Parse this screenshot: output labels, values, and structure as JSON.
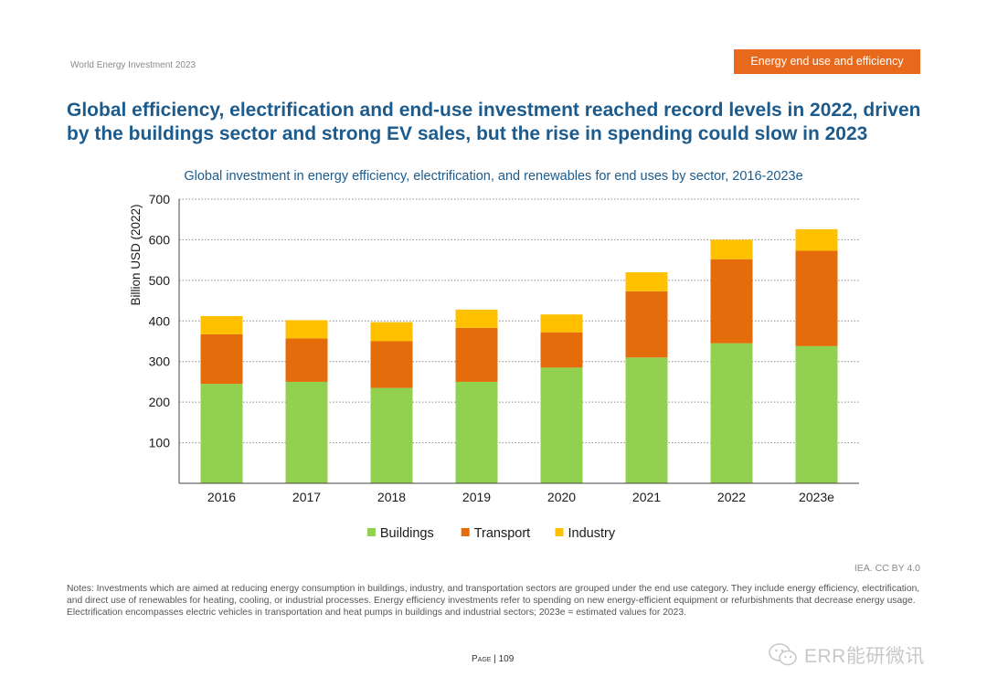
{
  "header": {
    "doc_name": "World Energy Investment 2023",
    "section_tag": "Energy end use and efficiency"
  },
  "headline": "Global efficiency, electrification and end-use investment reached record levels in 2022, driven by the buildings sector and strong EV sales, but the rise in spending could slow in 2023",
  "chart_data": {
    "type": "bar",
    "stacked": true,
    "title": "Global investment in energy efficiency, electrification, and renewables for end uses by sector, 2016-2023e",
    "xlabel": "",
    "ylabel": "Billion USD (2022)",
    "ylim": [
      0,
      700
    ],
    "yticks": [
      100,
      200,
      300,
      400,
      500,
      600,
      700
    ],
    "grid": true,
    "legend_position": "bottom",
    "categories": [
      "2016",
      "2017",
      "2018",
      "2019",
      "2020",
      "2021",
      "2022",
      "2023e"
    ],
    "series": [
      {
        "name": "Buildings",
        "color": "#92d050",
        "values": [
          245,
          250,
          235,
          250,
          285,
          310,
          345,
          338
        ]
      },
      {
        "name": "Transport",
        "color": "#e46c0a",
        "values": [
          122,
          107,
          115,
          133,
          87,
          163,
          207,
          235
        ]
      },
      {
        "name": "Industry",
        "color": "#ffc000",
        "values": [
          45,
          45,
          47,
          45,
          44,
          47,
          48,
          53
        ]
      }
    ]
  },
  "credit": "IEA. CC BY 4.0",
  "notes": "Notes: Investments which are aimed at reducing energy consumption in buildings, industry, and transportation sectors are grouped under the end use category. They include energy efficiency, electrification, and direct use of renewables for heating, cooling, or industrial processes. Energy efficiency investments refer to spending on new energy-efficient equipment or refurbishments that decrease energy usage. Electrification encompasses electric vehicles in transportation and heat pumps in buildings and industrial sectors; 2023e = estimated values for 2023.",
  "footer": {
    "page_label": "Page",
    "page_number": "109",
    "watermark_text": "ERR能研微讯",
    "watermark_icon": "wechat-icon"
  }
}
